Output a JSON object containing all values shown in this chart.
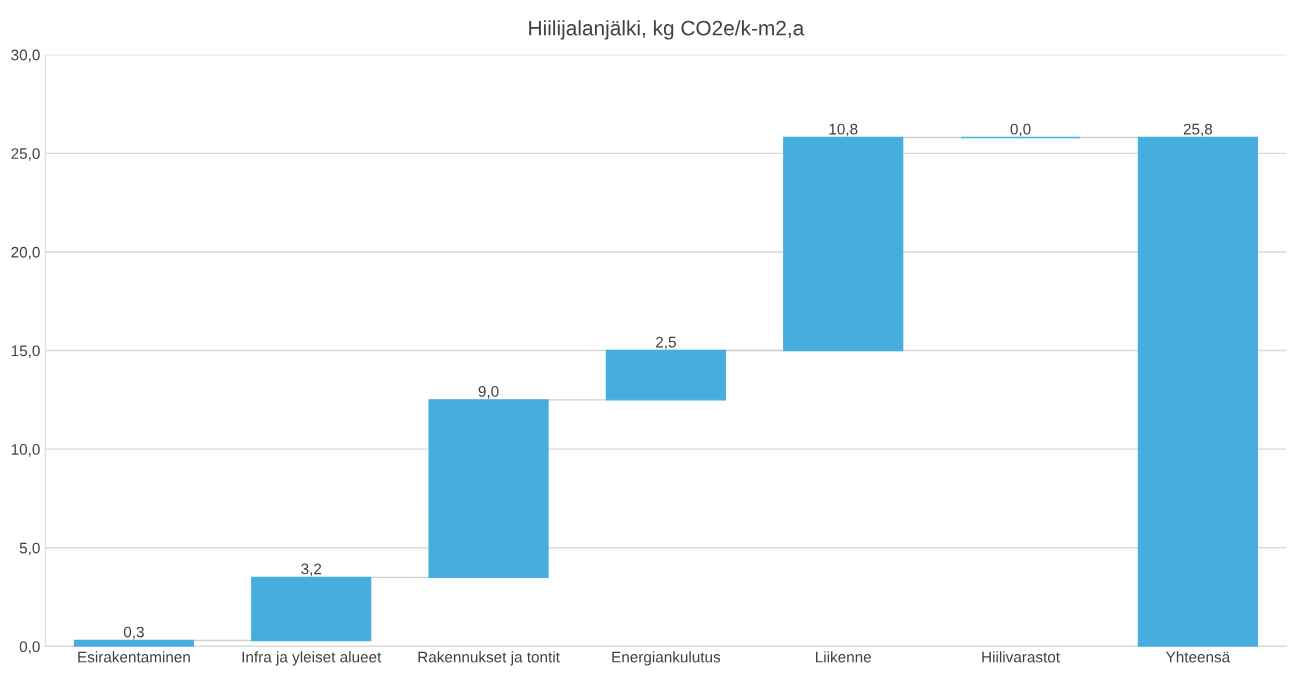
{
  "chart_data": {
    "type": "bar",
    "title": "Hiilijalanjälki, kg CO2e/k-m2,a",
    "categories": [
      "Esirakentaminen",
      "Infra ja yleiset alueet",
      "Rakennukset ja tontit",
      "Energiankulutus",
      "Liikenne",
      "Hiilivarastot",
      "Yhteensä"
    ],
    "values": [
      0.3,
      3.2,
      9.0,
      2.5,
      10.8,
      0.0,
      25.8
    ],
    "base": [
      0,
      0.3,
      3.5,
      12.5,
      15.0,
      25.8,
      0
    ],
    "value_labels": [
      "0,3",
      "3,2",
      "9,0",
      "2,5",
      "10,8",
      "0,0",
      "25,8"
    ],
    "color": "#45aedf",
    "ylim": [
      0,
      30
    ],
    "yticks": [
      {
        "value": 0,
        "label": "0,0"
      },
      {
        "value": 5,
        "label": "5,0"
      },
      {
        "value": 10,
        "label": "10,0"
      },
      {
        "value": 15,
        "label": "15,0"
      },
      {
        "value": 20,
        "label": "20,0"
      },
      {
        "value": 25,
        "label": "25,0"
      },
      {
        "value": 30,
        "label": "30,0"
      }
    ],
    "grid": "y"
  }
}
